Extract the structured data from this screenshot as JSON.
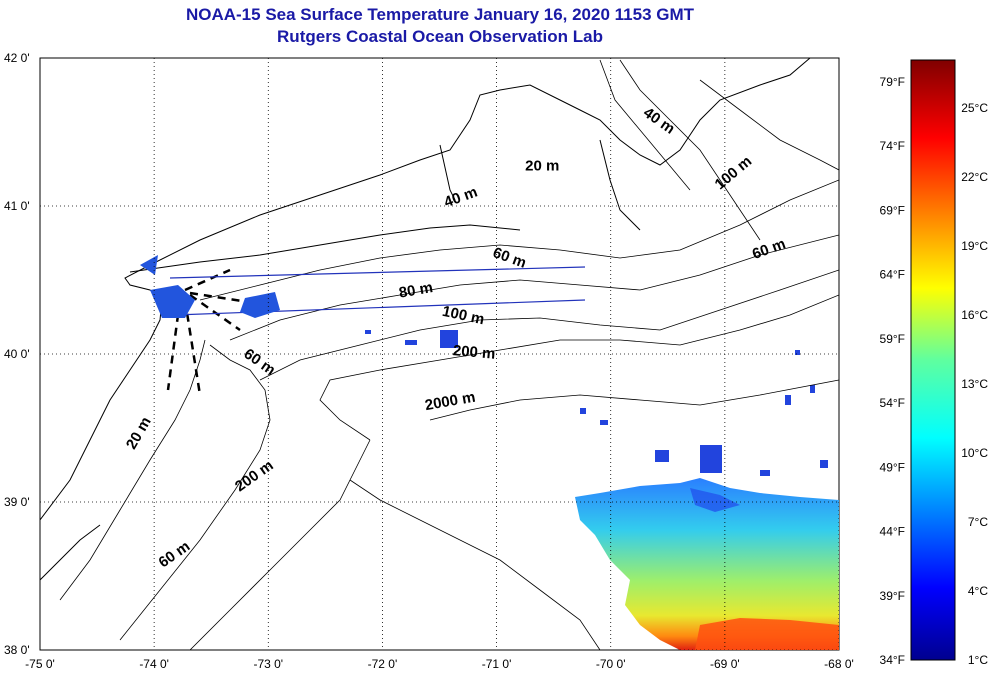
{
  "title": {
    "line1": "NOAA-15 Sea Surface Temperature January 16, 2020 1153 GMT",
    "line2": "Rutgers Coastal Ocean Observation Lab"
  },
  "map": {
    "lon_range": [
      -75,
      -68
    ],
    "lat_range": [
      38,
      42
    ],
    "lon_ticks": [
      {
        "value": -75,
        "label": "-75 0'"
      },
      {
        "value": -74,
        "label": "-74 0'"
      },
      {
        "value": -73,
        "label": "-73 0'"
      },
      {
        "value": -72,
        "label": "-72 0'"
      },
      {
        "value": -71,
        "label": "-71 0'"
      },
      {
        "value": -70,
        "label": "-70 0'"
      },
      {
        "value": -69,
        "label": "-69 0'"
      },
      {
        "value": -68,
        "label": "-68 0'"
      }
    ],
    "lat_ticks": [
      {
        "value": 42,
        "label": "42 0'"
      },
      {
        "value": 41,
        "label": "41 0'"
      },
      {
        "value": 40,
        "label": "40 0'"
      },
      {
        "value": 39,
        "label": "39 0'"
      },
      {
        "value": 38,
        "label": "38 0'"
      }
    ],
    "contour_labels": [
      {
        "text": "40 m",
        "lon": -69.6,
        "lat": 41.55,
        "rot": 35
      },
      {
        "text": "100 m",
        "lon": -68.9,
        "lat": 41.2,
        "rot": -40
      },
      {
        "text": "20 m",
        "lon": -70.6,
        "lat": 41.24,
        "rot": 0
      },
      {
        "text": "40 m",
        "lon": -71.3,
        "lat": 41.03,
        "rot": -20
      },
      {
        "text": "60 m",
        "lon": -68.6,
        "lat": 40.68,
        "rot": -20
      },
      {
        "text": "60 m",
        "lon": -70.9,
        "lat": 40.62,
        "rot": 20
      },
      {
        "text": "80 m",
        "lon": -71.7,
        "lat": 40.4,
        "rot": -10
      },
      {
        "text": "100 m",
        "lon": -71.3,
        "lat": 40.23,
        "rot": 12
      },
      {
        "text": "200 m",
        "lon": -71.2,
        "lat": 39.98,
        "rot": 5
      },
      {
        "text": "60 m",
        "lon": -73.1,
        "lat": 39.92,
        "rot": 35
      },
      {
        "text": "2000 m",
        "lon": -71.4,
        "lat": 39.65,
        "rot": -10
      },
      {
        "text": "20 m",
        "lon": -74.1,
        "lat": 39.45,
        "rot": -60
      },
      {
        "text": "200 m",
        "lon": -73.1,
        "lat": 39.15,
        "rot": -35
      },
      {
        "text": "60 m",
        "lon": -73.8,
        "lat": 38.62,
        "rot": -35
      }
    ]
  },
  "colorbar": {
    "f_labels": [
      "79°F",
      "74°F",
      "69°F",
      "64°F",
      "59°F",
      "54°F",
      "49°F",
      "44°F",
      "39°F",
      "34°F"
    ],
    "c_labels": [
      "25°C",
      "22°C",
      "19°C",
      "16°C",
      "13°C",
      "10°C",
      "7°C",
      "4°C",
      "1°C"
    ],
    "c_range": [
      1,
      27
    ]
  }
}
